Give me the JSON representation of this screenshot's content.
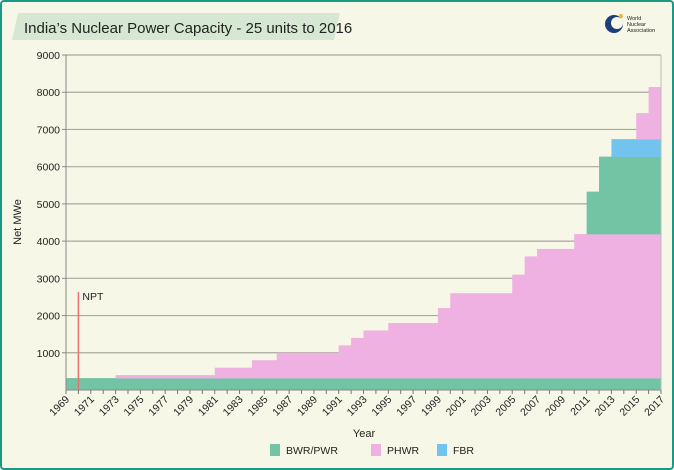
{
  "chart_data": {
    "type": "area",
    "subtype": "stacked-step",
    "title": "India’s Nuclear Power Capacity - 25 units to 2016",
    "xlabel": "Year",
    "ylabel": "Net MWe",
    "xlim": [
      1969,
      2017
    ],
    "ylim": [
      0,
      9000
    ],
    "yticks": [
      1000,
      2000,
      3000,
      4000,
      5000,
      6000,
      7000,
      8000,
      9000
    ],
    "xtick_labels": [
      "1969",
      "1971",
      "1973",
      "1975",
      "1977",
      "1979",
      "1981",
      "1983",
      "1985",
      "1987",
      "1989",
      "1991",
      "1993",
      "1995",
      "1997",
      "1999",
      "2001",
      "2003",
      "2005",
      "2007",
      "2009",
      "2011",
      "2013",
      "2015",
      "2017"
    ],
    "grid": "horizontal",
    "legend_position": "bottom",
    "legend": [
      {
        "name": "BWR/PWR",
        "color": "#72c4a4"
      },
      {
        "name": "PHWR",
        "color": "#efb1e2"
      },
      {
        "name": "FBR",
        "color": "#72c4ee"
      }
    ],
    "segments": [
      {
        "series": "BWR/PWR",
        "from": 1969,
        "to": 2017,
        "bottom": 0,
        "top": 320
      },
      {
        "series": "PHWR",
        "from": 1973,
        "to": 1981,
        "bottom": 320,
        "top": 400
      },
      {
        "series": "PHWR",
        "from": 1981,
        "to": 1984,
        "bottom": 320,
        "top": 600
      },
      {
        "series": "PHWR",
        "from": 1984,
        "to": 1986,
        "bottom": 320,
        "top": 800
      },
      {
        "series": "PHWR",
        "from": 1986,
        "to": 1991,
        "bottom": 320,
        "top": 1000
      },
      {
        "series": "PHWR",
        "from": 1991,
        "to": 1992,
        "bottom": 320,
        "top": 1200
      },
      {
        "series": "PHWR",
        "from": 1992,
        "to": 1993,
        "bottom": 320,
        "top": 1400
      },
      {
        "series": "PHWR",
        "from": 1993,
        "to": 1995,
        "bottom": 320,
        "top": 1600
      },
      {
        "series": "PHWR",
        "from": 1995,
        "to": 1999,
        "bottom": 320,
        "top": 1800
      },
      {
        "series": "PHWR",
        "from": 1999,
        "to": 2000,
        "bottom": 320,
        "top": 2200
      },
      {
        "series": "PHWR",
        "from": 2000,
        "to": 2005,
        "bottom": 320,
        "top": 2600
      },
      {
        "series": "PHWR",
        "from": 2005,
        "to": 2006,
        "bottom": 320,
        "top": 3100
      },
      {
        "series": "PHWR",
        "from": 2006,
        "to": 2007,
        "bottom": 320,
        "top": 3590
      },
      {
        "series": "PHWR",
        "from": 2007,
        "to": 2010,
        "bottom": 320,
        "top": 3790
      },
      {
        "series": "PHWR",
        "from": 2010,
        "to": 2017,
        "bottom": 320,
        "top": 4190
      },
      {
        "series": "BWR/PWR",
        "from": 2011,
        "to": 2012,
        "bottom": 4190,
        "top": 5330
      },
      {
        "series": "BWR/PWR",
        "from": 2012,
        "to": 2017,
        "bottom": 4190,
        "top": 6270
      },
      {
        "series": "FBR",
        "from": 2013,
        "to": 2017,
        "bottom": 6270,
        "top": 6740
      },
      {
        "series": "PHWR",
        "from": 2015,
        "to": 2016,
        "bottom": 6740,
        "top": 7440
      },
      {
        "series": "PHWR",
        "from": 2016,
        "to": 2017,
        "bottom": 6740,
        "top": 8140
      }
    ],
    "annotations": [
      {
        "label": "NPT",
        "x": 1970,
        "y_top": 2630,
        "color": "#e87070"
      }
    ]
  },
  "logo": {
    "text": "World Nuclear Association"
  }
}
